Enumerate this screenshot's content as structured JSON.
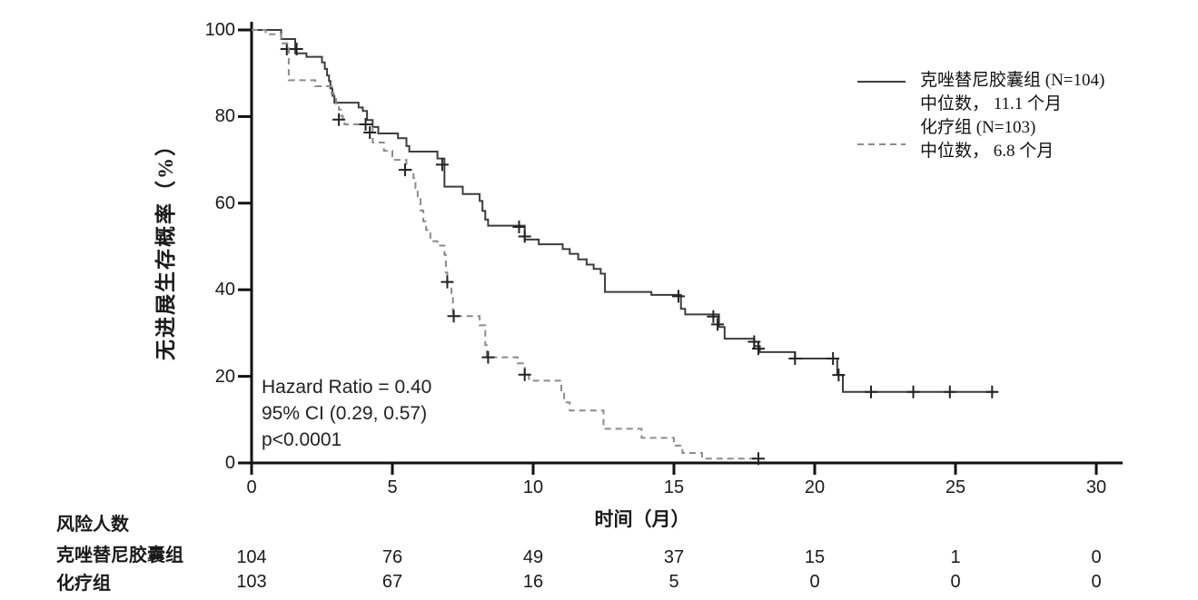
{
  "chart_data": {
    "type": "line",
    "variant": "kaplan_meier_step",
    "title": "",
    "xlabel": "时间（月）",
    "ylabel": "无进展生存概率（%）",
    "xlim": [
      0,
      31
    ],
    "ylim": [
      0,
      100
    ],
    "xticks": [
      0,
      5,
      10,
      15,
      20,
      25,
      30
    ],
    "yticks": [
      0,
      20,
      40,
      60,
      80,
      100
    ],
    "grid": false,
    "legend_position": "upper right",
    "series": [
      {
        "name": "克唑替尼胶囊组  (N=104)",
        "median_label": "中位数，  11.1 个月",
        "line_style": "solid",
        "color": "#3d3d3d",
        "start": [
          0,
          100
        ],
        "end_month": 26.45,
        "steps": [
          [
            1.05,
            97.9
          ],
          [
            1.55,
            94.6
          ],
          [
            1.95,
            93.8
          ],
          [
            2.5,
            92.5
          ],
          [
            2.6,
            91.0
          ],
          [
            2.68,
            89.5
          ],
          [
            2.75,
            88.2
          ],
          [
            2.8,
            86.5
          ],
          [
            2.87,
            84.8
          ],
          [
            2.94,
            83.2
          ],
          [
            3.8,
            82.1
          ],
          [
            3.95,
            81.3
          ],
          [
            4.1,
            79.2
          ],
          [
            4.3,
            77.6
          ],
          [
            4.5,
            76.1
          ],
          [
            5.2,
            75.0
          ],
          [
            5.5,
            73.2
          ],
          [
            5.6,
            71.9
          ],
          [
            6.6,
            70.3
          ],
          [
            6.85,
            63.8
          ],
          [
            7.5,
            62.1
          ],
          [
            8.1,
            60.5
          ],
          [
            8.2,
            58.2
          ],
          [
            8.3,
            56.2
          ],
          [
            8.4,
            54.8
          ],
          [
            9.7,
            51.6
          ],
          [
            10.2,
            50.5
          ],
          [
            11.05,
            49.4
          ],
          [
            11.3,
            48.3
          ],
          [
            11.6,
            47.0
          ],
          [
            11.9,
            45.8
          ],
          [
            12.15,
            44.8
          ],
          [
            12.4,
            43.7
          ],
          [
            12.55,
            39.5
          ],
          [
            14.2,
            38.8
          ],
          [
            15.25,
            35.6
          ],
          [
            15.4,
            34.3
          ],
          [
            16.6,
            31.4
          ],
          [
            16.8,
            28.7
          ],
          [
            17.85,
            27.0
          ],
          [
            18.05,
            25.6
          ],
          [
            19.3,
            24.1
          ],
          [
            20.8,
            20.3
          ],
          [
            21.0,
            16.4
          ]
        ],
        "censor_marks": [
          [
            1.25,
            95.6
          ],
          [
            1.6,
            95.6
          ],
          [
            6.77,
            68.9
          ],
          [
            9.5,
            54.5
          ],
          [
            9.7,
            52.3
          ],
          [
            15.16,
            38.5
          ],
          [
            16.4,
            33.8
          ],
          [
            16.55,
            32.0
          ],
          [
            17.85,
            28.0
          ],
          [
            18.0,
            26.4
          ],
          [
            19.3,
            24.1
          ],
          [
            20.65,
            24.1
          ],
          [
            20.85,
            20.3
          ],
          [
            22.0,
            16.4
          ],
          [
            23.5,
            16.4
          ],
          [
            24.8,
            16.4
          ],
          [
            26.3,
            16.4
          ]
        ]
      },
      {
        "name": "化疗组  (N=103)",
        "median_label": "中位数，  6.8 个月",
        "line_style": "dashed",
        "color": "#8c8c8c",
        "start": [
          0,
          100
        ],
        "end_month": 18.0,
        "steps": [
          [
            0.5,
            99.0
          ],
          [
            1.05,
            96.9
          ],
          [
            1.32,
            88.4
          ],
          [
            2.26,
            87.0
          ],
          [
            2.84,
            85.4
          ],
          [
            2.92,
            84.4
          ],
          [
            3.0,
            83.0
          ],
          [
            3.1,
            81.6
          ],
          [
            3.17,
            80.2
          ],
          [
            3.24,
            78.9
          ],
          [
            3.3,
            78.2
          ],
          [
            4.3,
            74.0
          ],
          [
            4.7,
            72.1
          ],
          [
            5.0,
            70.0
          ],
          [
            5.5,
            67.7
          ],
          [
            5.75,
            65.8
          ],
          [
            5.82,
            63.5
          ],
          [
            5.9,
            61.0
          ],
          [
            6.0,
            58.3
          ],
          [
            6.1,
            55.8
          ],
          [
            6.2,
            53.8
          ],
          [
            6.35,
            51.2
          ],
          [
            6.6,
            50.2
          ],
          [
            6.85,
            48.1
          ],
          [
            6.9,
            44.0
          ],
          [
            6.95,
            41.8
          ],
          [
            7.1,
            38.6
          ],
          [
            7.15,
            33.9
          ],
          [
            8.1,
            31.8
          ],
          [
            8.3,
            27.2
          ],
          [
            8.35,
            24.4
          ],
          [
            9.45,
            23.0
          ],
          [
            9.7,
            20.4
          ],
          [
            9.85,
            19.0
          ],
          [
            11.0,
            16.0
          ],
          [
            11.1,
            14.0
          ],
          [
            11.3,
            12.1
          ],
          [
            12.5,
            7.9
          ],
          [
            13.85,
            5.8
          ],
          [
            15.0,
            4.0
          ],
          [
            15.3,
            2.3
          ],
          [
            16.0,
            1.0
          ]
        ],
        "censor_marks": [
          [
            3.1,
            79.3
          ],
          [
            4.05,
            78.2
          ],
          [
            4.2,
            76.3
          ],
          [
            5.45,
            67.7
          ],
          [
            6.95,
            41.8
          ],
          [
            7.18,
            33.9
          ],
          [
            8.4,
            24.4
          ],
          [
            9.7,
            20.4
          ],
          [
            18.0,
            1.0
          ]
        ]
      }
    ]
  },
  "annotation": {
    "hazard_ratio": "Hazard Ratio = 0.40",
    "ci": "95% CI (0.29, 0.57)",
    "p_value": "p<0.0001"
  },
  "risk_table": {
    "header": "风险人数",
    "time_points": [
      0,
      5,
      10,
      15,
      20,
      25,
      30
    ],
    "rows": [
      {
        "label": "克唑替尼胶囊组",
        "values": [
          "104",
          "76",
          "49",
          "37",
          "15",
          "1",
          "0"
        ]
      },
      {
        "label": "化疗组",
        "values": [
          "103",
          "67",
          "16",
          "5",
          "0",
          "0",
          "0"
        ]
      }
    ]
  },
  "colors": {
    "axis": "#111111",
    "text": "#1a1a1a",
    "background": "#ffffff",
    "solid_series": "#3d3d3d",
    "dashed_series": "#8c8c8c",
    "censor": "#222222"
  }
}
